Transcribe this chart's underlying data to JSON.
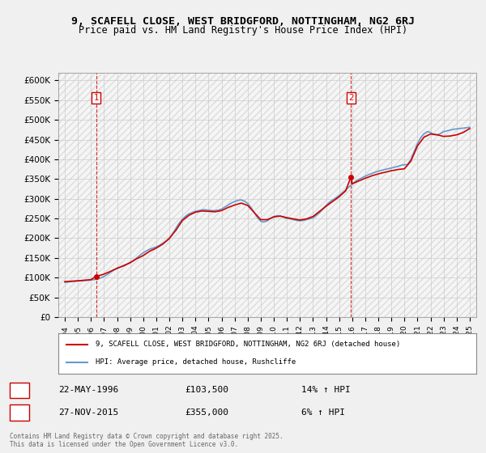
{
  "title_line1": "9, SCAFELL CLOSE, WEST BRIDGFORD, NOTTINGHAM, NG2 6RJ",
  "title_line2": "Price paid vs. HM Land Registry's House Price Index (HPI)",
  "legend_label1": "9, SCAFELL CLOSE, WEST BRIDGFORD, NOTTINGHAM, NG2 6RJ (detached house)",
  "legend_label2": "HPI: Average price, detached house, Rushcliffe",
  "color_price": "#cc0000",
  "color_hpi": "#6699cc",
  "annotation1_label": "1",
  "annotation1_date": "22-MAY-1996",
  "annotation1_price": "£103,500",
  "annotation1_info": "14% ↑ HPI",
  "annotation2_label": "2",
  "annotation2_date": "27-NOV-2015",
  "annotation2_price": "£355,000",
  "annotation2_info": "6% ↑ HPI",
  "vline1_x": 1996.4,
  "vline2_x": 2015.9,
  "ylim_min": 0,
  "ylim_max": 620000,
  "xlim_min": 1993.5,
  "xlim_max": 2025.5,
  "yticks": [
    0,
    50000,
    100000,
    150000,
    200000,
    250000,
    300000,
    350000,
    400000,
    450000,
    500000,
    550000,
    600000
  ],
  "ytick_labels": [
    "£0",
    "£50K",
    "£100K",
    "£150K",
    "£200K",
    "£250K",
    "£300K",
    "£350K",
    "£400K",
    "£450K",
    "£500K",
    "£550K",
    "£600K"
  ],
  "footer": "Contains HM Land Registry data © Crown copyright and database right 2025.\nThis data is licensed under the Open Government Licence v3.0.",
  "bg_color": "#f0f0f0",
  "plot_bg_color": "#ffffff",
  "hpi_data_x": [
    1994.0,
    1994.25,
    1994.5,
    1994.75,
    1995.0,
    1995.25,
    1995.5,
    1995.75,
    1996.0,
    1996.25,
    1996.5,
    1996.75,
    1997.0,
    1997.25,
    1997.5,
    1997.75,
    1998.0,
    1998.25,
    1998.5,
    1998.75,
    1999.0,
    1999.25,
    1999.5,
    1999.75,
    2000.0,
    2000.25,
    2000.5,
    2000.75,
    2001.0,
    2001.25,
    2001.5,
    2001.75,
    2002.0,
    2002.25,
    2002.5,
    2002.75,
    2003.0,
    2003.25,
    2003.5,
    2003.75,
    2004.0,
    2004.25,
    2004.5,
    2004.75,
    2005.0,
    2005.25,
    2005.5,
    2005.75,
    2006.0,
    2006.25,
    2006.5,
    2006.75,
    2007.0,
    2007.25,
    2007.5,
    2007.75,
    2008.0,
    2008.25,
    2008.5,
    2008.75,
    2009.0,
    2009.25,
    2009.5,
    2009.75,
    2010.0,
    2010.25,
    2010.5,
    2010.75,
    2011.0,
    2011.25,
    2011.5,
    2011.75,
    2012.0,
    2012.25,
    2012.5,
    2012.75,
    2013.0,
    2013.25,
    2013.5,
    2013.75,
    2014.0,
    2014.25,
    2014.5,
    2014.75,
    2015.0,
    2015.25,
    2015.5,
    2015.75,
    2016.0,
    2016.25,
    2016.5,
    2016.75,
    2017.0,
    2017.25,
    2017.5,
    2017.75,
    2018.0,
    2018.25,
    2018.5,
    2018.75,
    2019.0,
    2019.25,
    2019.5,
    2019.75,
    2020.0,
    2020.25,
    2020.5,
    2020.75,
    2021.0,
    2021.25,
    2021.5,
    2021.75,
    2022.0,
    2022.25,
    2022.5,
    2022.75,
    2023.0,
    2023.25,
    2023.5,
    2023.75,
    2024.0,
    2024.25,
    2024.5,
    2024.75,
    2025.0
  ],
  "hpi_data_y": [
    88000,
    89000,
    90000,
    91000,
    91500,
    92000,
    92500,
    93000,
    94000,
    95000,
    97000,
    99000,
    103000,
    108000,
    114000,
    119000,
    123000,
    127000,
    131000,
    134000,
    138000,
    143000,
    150000,
    157000,
    163000,
    168000,
    172000,
    175000,
    178000,
    182000,
    187000,
    192000,
    198000,
    210000,
    225000,
    238000,
    248000,
    256000,
    262000,
    265000,
    268000,
    270000,
    272000,
    272000,
    271000,
    270000,
    270000,
    271000,
    274000,
    279000,
    284000,
    289000,
    293000,
    296000,
    297000,
    294000,
    288000,
    278000,
    265000,
    252000,
    243000,
    241000,
    244000,
    250000,
    255000,
    257000,
    256000,
    253000,
    250000,
    249000,
    247000,
    245000,
    244000,
    245000,
    247000,
    249000,
    252000,
    258000,
    265000,
    274000,
    283000,
    291000,
    297000,
    302000,
    308000,
    315000,
    322000,
    330000,
    337000,
    344000,
    349000,
    353000,
    357000,
    361000,
    364000,
    367000,
    370000,
    372000,
    374000,
    376000,
    378000,
    380000,
    382000,
    385000,
    386000,
    387000,
    400000,
    420000,
    440000,
    455000,
    465000,
    470000,
    468000,
    463000,
    462000,
    465000,
    470000,
    472000,
    474000,
    476000,
    477000,
    478000,
    479000,
    480000,
    481000
  ],
  "price_data_x": [
    1996.4,
    2015.9
  ],
  "price_data_y": [
    103500,
    355000
  ],
  "price_line_x": [
    1994.0,
    1994.5,
    1995.0,
    1995.5,
    1996.0,
    1996.4,
    1996.5,
    1997.0,
    1997.5,
    1998.0,
    1998.5,
    1999.0,
    1999.5,
    2000.0,
    2000.5,
    2001.0,
    2001.5,
    2002.0,
    2002.5,
    2003.0,
    2003.5,
    2004.0,
    2004.5,
    2005.0,
    2005.5,
    2006.0,
    2006.5,
    2007.0,
    2007.5,
    2008.0,
    2008.5,
    2009.0,
    2009.5,
    2010.0,
    2010.5,
    2011.0,
    2011.5,
    2012.0,
    2012.5,
    2013.0,
    2013.5,
    2014.0,
    2014.5,
    2015.0,
    2015.5,
    2015.9,
    2016.0,
    2016.5,
    2017.0,
    2017.5,
    2018.0,
    2018.5,
    2019.0,
    2019.5,
    2020.0,
    2020.5,
    2021.0,
    2021.5,
    2022.0,
    2022.5,
    2023.0,
    2023.5,
    2024.0,
    2024.5,
    2025.0
  ],
  "price_line_y": [
    90000,
    91000,
    92000,
    93500,
    95000,
    103500,
    104000,
    109000,
    116000,
    124000,
    130000,
    138000,
    148000,
    156000,
    167000,
    175000,
    185000,
    200000,
    220000,
    245000,
    258000,
    266000,
    269000,
    268000,
    267000,
    270000,
    278000,
    284000,
    289000,
    283000,
    265000,
    247000,
    247000,
    254000,
    256000,
    252000,
    249000,
    246000,
    249000,
    255000,
    268000,
    281000,
    293000,
    305000,
    320000,
    355000,
    338000,
    345000,
    352000,
    358000,
    363000,
    367000,
    371000,
    374000,
    376000,
    396000,
    434000,
    456000,
    464000,
    462000,
    458000,
    459000,
    462000,
    468000,
    478000
  ]
}
